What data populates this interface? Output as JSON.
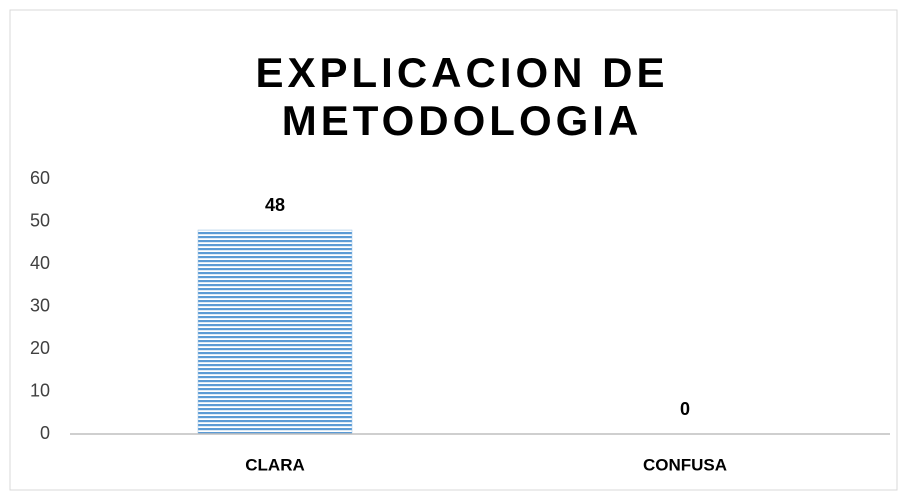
{
  "chart_data": {
    "type": "bar",
    "title": [
      "EXPLICACION DE",
      "METODOLOGIA"
    ],
    "categories": [
      "CLARA",
      "CONFUSA"
    ],
    "values": [
      48,
      0
    ],
    "color": "#5b9bd5",
    "ylim": [
      0,
      60
    ],
    "yticks": [
      0,
      10,
      20,
      30,
      40,
      50,
      60
    ],
    "grid": false
  }
}
